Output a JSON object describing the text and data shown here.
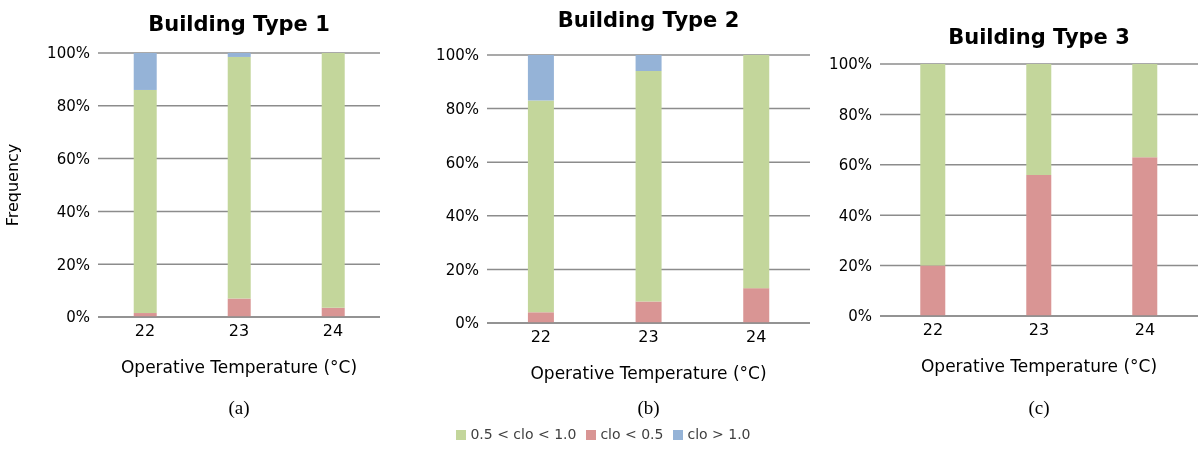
{
  "chart_data": [
    {
      "type": "bar",
      "title": "Building Type 1",
      "xlabel": "Operative Temperature (°C)",
      "ylabel": "Frequency",
      "categories": [
        "22",
        "23",
        "24"
      ],
      "stacked": true,
      "ylim": [
        0,
        100
      ],
      "yticks": [
        {
          "value": 0,
          "label": "0%"
        },
        {
          "value": 20,
          "label": "20%"
        },
        {
          "value": 40,
          "label": "40%"
        },
        {
          "value": 60,
          "label": "60%"
        },
        {
          "value": 80,
          "label": "80%"
        },
        {
          "value": 100,
          "label": "100%"
        }
      ],
      "grid": "y",
      "annotations": [
        "(a)"
      ],
      "series": [
        {
          "color": "#d99594",
          "values": [
            1.5,
            7,
            3.5
          ]
        },
        {
          "color": "#c3d69b",
          "values": [
            84.5,
            91.5,
            96.5
          ]
        },
        {
          "color": "#95b3d7",
          "values": [
            14,
            1.5,
            0
          ]
        }
      ]
    },
    {
      "type": "bar",
      "title": "Building Type 2",
      "xlabel": "Operative Temperature (°C)",
      "categories": [
        "22",
        "23",
        "24"
      ],
      "stacked": true,
      "ylim": [
        0,
        100
      ],
      "yticks": [
        {
          "value": 0,
          "label": "0%"
        },
        {
          "value": 20,
          "label": "20%"
        },
        {
          "value": 40,
          "label": "40%"
        },
        {
          "value": 60,
          "label": "60%"
        },
        {
          "value": 80,
          "label": "80%"
        },
        {
          "value": 100,
          "label": "100%"
        }
      ],
      "grid": "y",
      "legend": "bottom",
      "annotations": [
        "(b)"
      ],
      "series": [
        {
          "name": "clo < 0.5",
          "color": "#d99594",
          "values": [
            4,
            8,
            13
          ]
        },
        {
          "name": "0.5 < clo < 1.0",
          "color": "#c3d69b",
          "values": [
            79,
            86,
            87
          ]
        },
        {
          "name": "clo > 1.0",
          "color": "#95b3d7",
          "values": [
            17,
            6,
            0
          ]
        }
      ]
    },
    {
      "type": "bar",
      "title": "Building Type 3",
      "xlabel": "Operative Temperature (°C)",
      "categories": [
        "22",
        "23",
        "24"
      ],
      "stacked": true,
      "ylim": [
        0,
        100
      ],
      "yticks": [
        {
          "value": 0,
          "label": "0%"
        },
        {
          "value": 20,
          "label": "20%"
        },
        {
          "value": 40,
          "label": "40%"
        },
        {
          "value": 60,
          "label": "60%"
        },
        {
          "value": 80,
          "label": "80%"
        },
        {
          "value": 100,
          "label": "100%"
        }
      ],
      "grid": "y",
      "annotations": [
        "(c)"
      ],
      "series": [
        {
          "color": "#d99594",
          "values": [
            20,
            56,
            63
          ]
        },
        {
          "color": "#c3d69b",
          "values": [
            80,
            44,
            37
          ]
        }
      ]
    }
  ]
}
